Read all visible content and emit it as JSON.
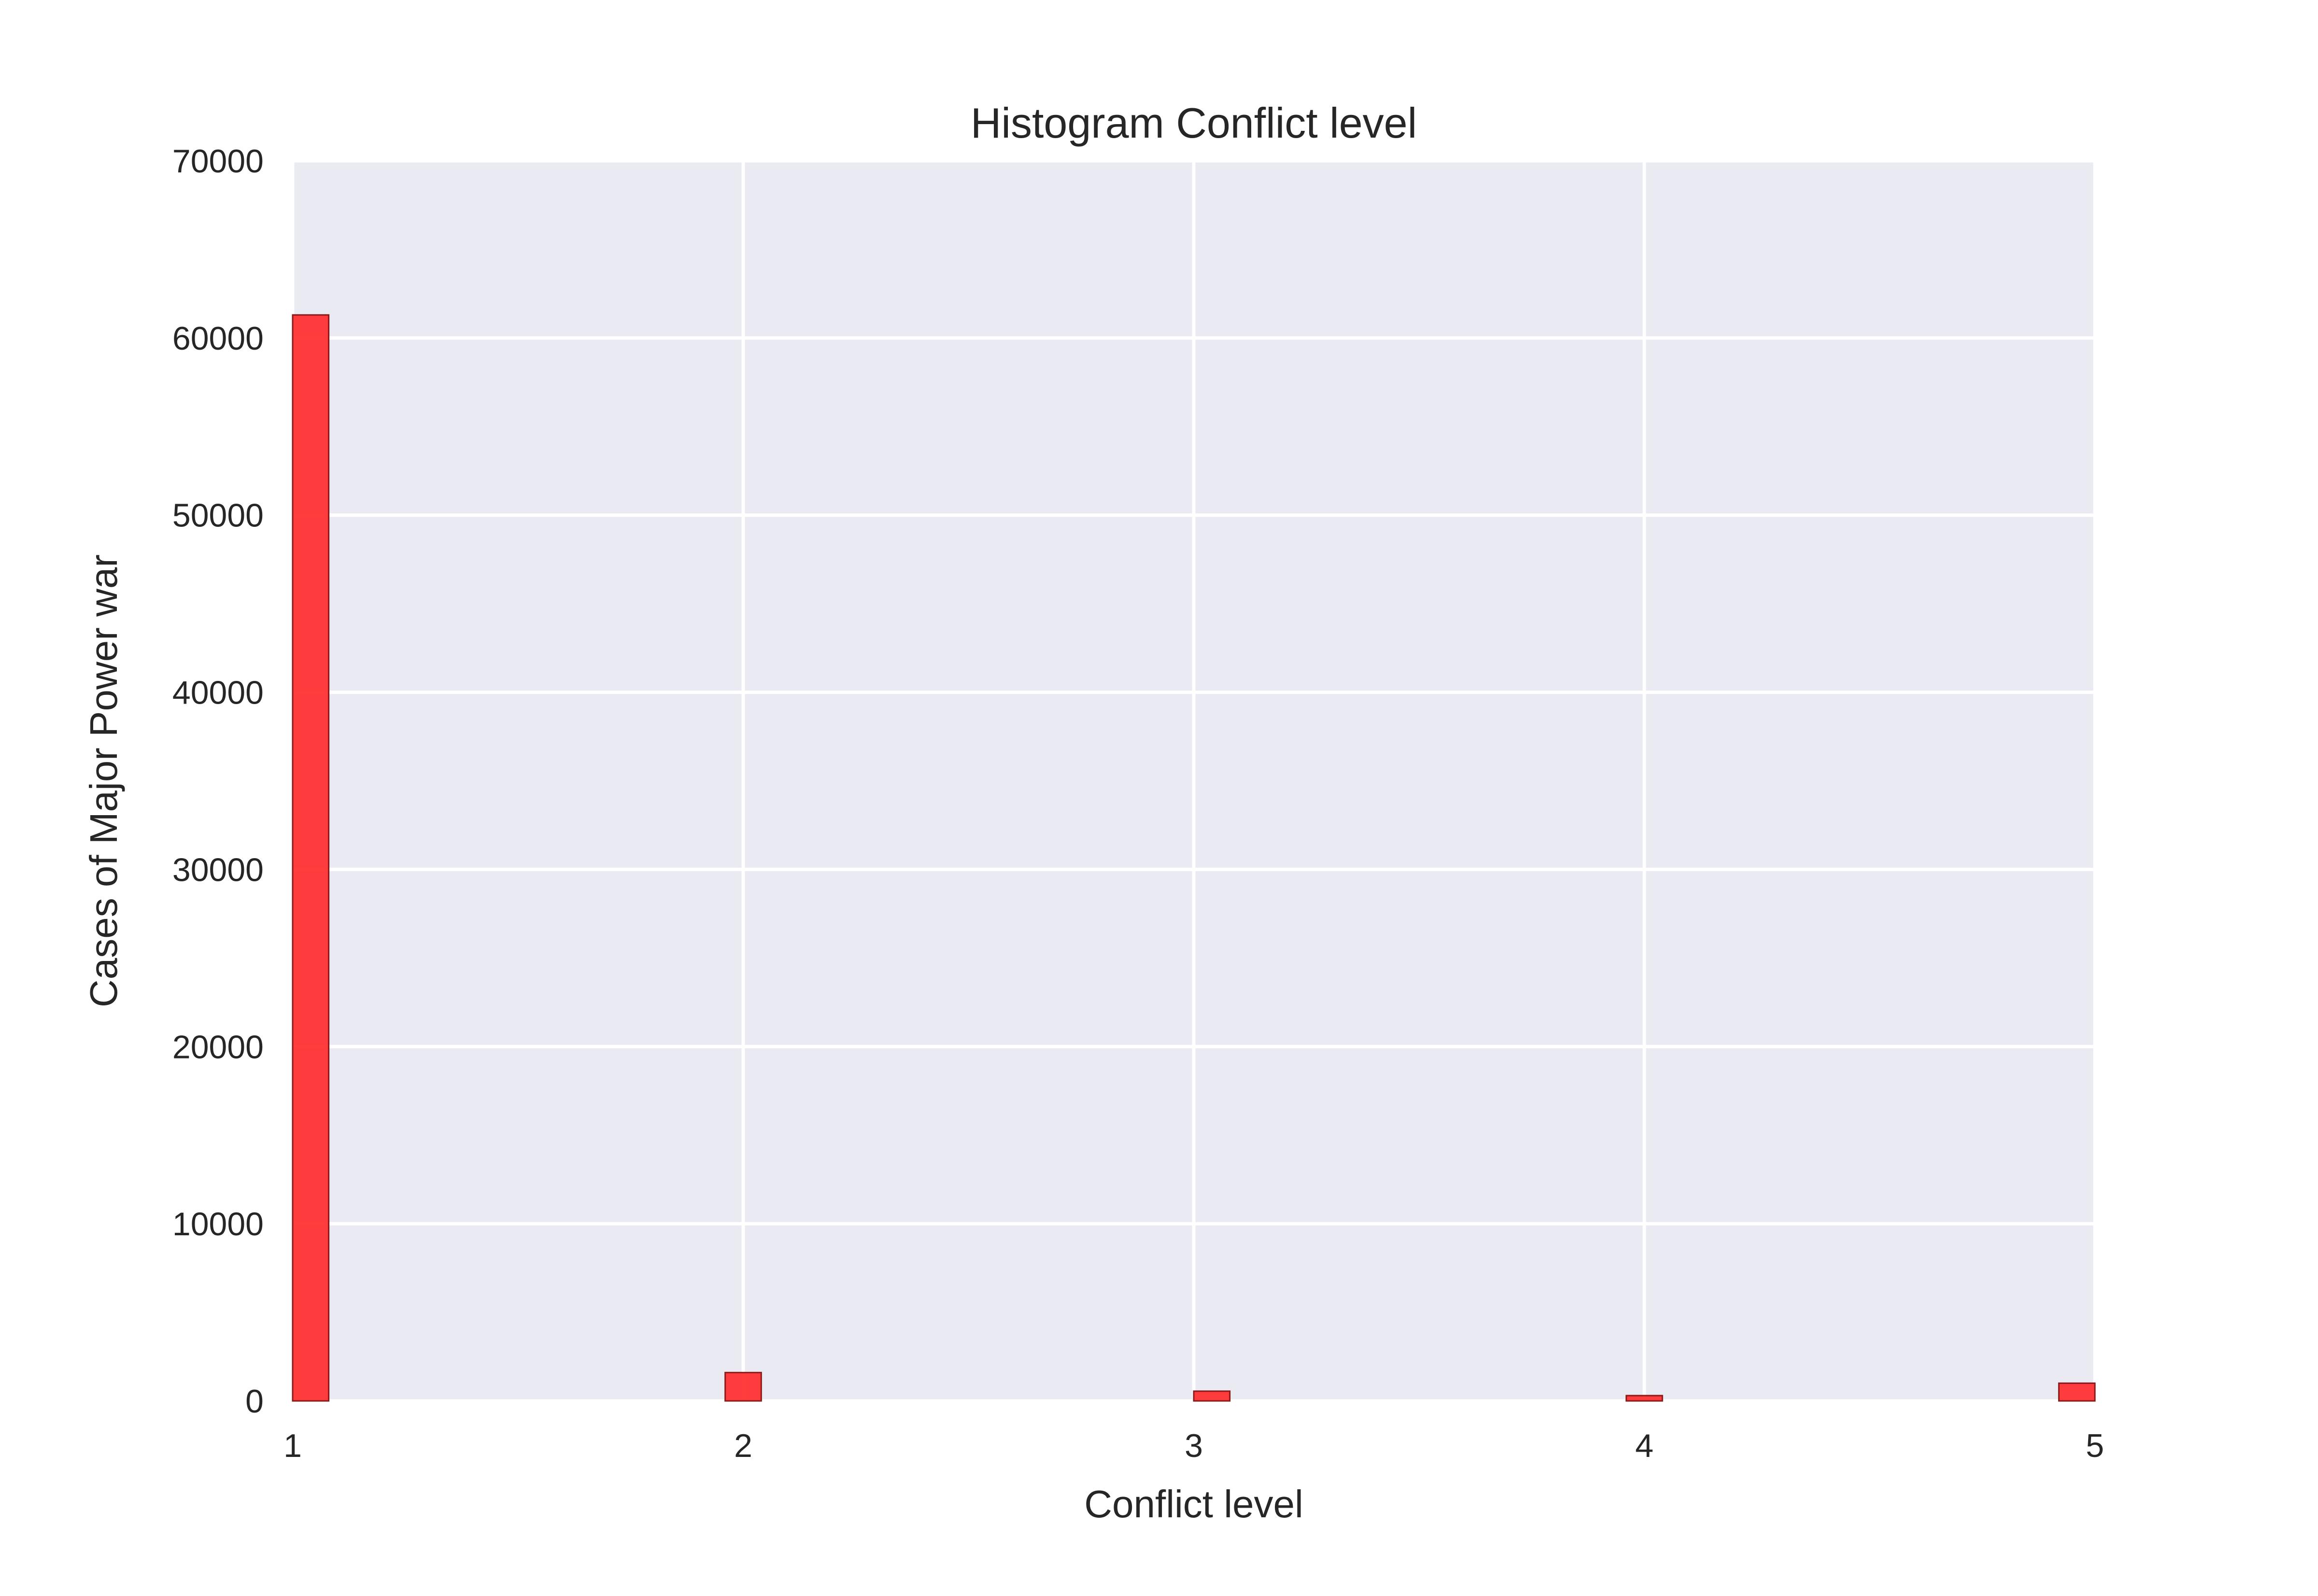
{
  "chart_data": {
    "type": "bar",
    "title": "Histogram Conflict level",
    "xlabel": "Conflict level",
    "ylabel": "Cases of Major Power war",
    "xlim": [
      1,
      5
    ],
    "ylim": [
      0,
      70000
    ],
    "xticks": [
      "1",
      "2",
      "3",
      "4",
      "5"
    ],
    "yticks": [
      "0",
      "10000",
      "20000",
      "30000",
      "40000",
      "50000",
      "60000",
      "70000"
    ],
    "grid": true,
    "bins": [
      {
        "x_start": 1.0,
        "x_end": 1.08,
        "value": 61300
      },
      {
        "x_start": 1.96,
        "x_end": 2.04,
        "value": 1600
      },
      {
        "x_start": 3.0,
        "x_end": 3.08,
        "value": 550
      },
      {
        "x_start": 3.96,
        "x_end": 4.04,
        "value": 300
      },
      {
        "x_start": 4.92,
        "x_end": 5.0,
        "value": 1000
      }
    ],
    "colors": {
      "bar_fill": "#ff3333",
      "bar_edge": "#8b1a1a",
      "plot_background": "#eaeaf2",
      "grid": "#ffffff"
    }
  }
}
